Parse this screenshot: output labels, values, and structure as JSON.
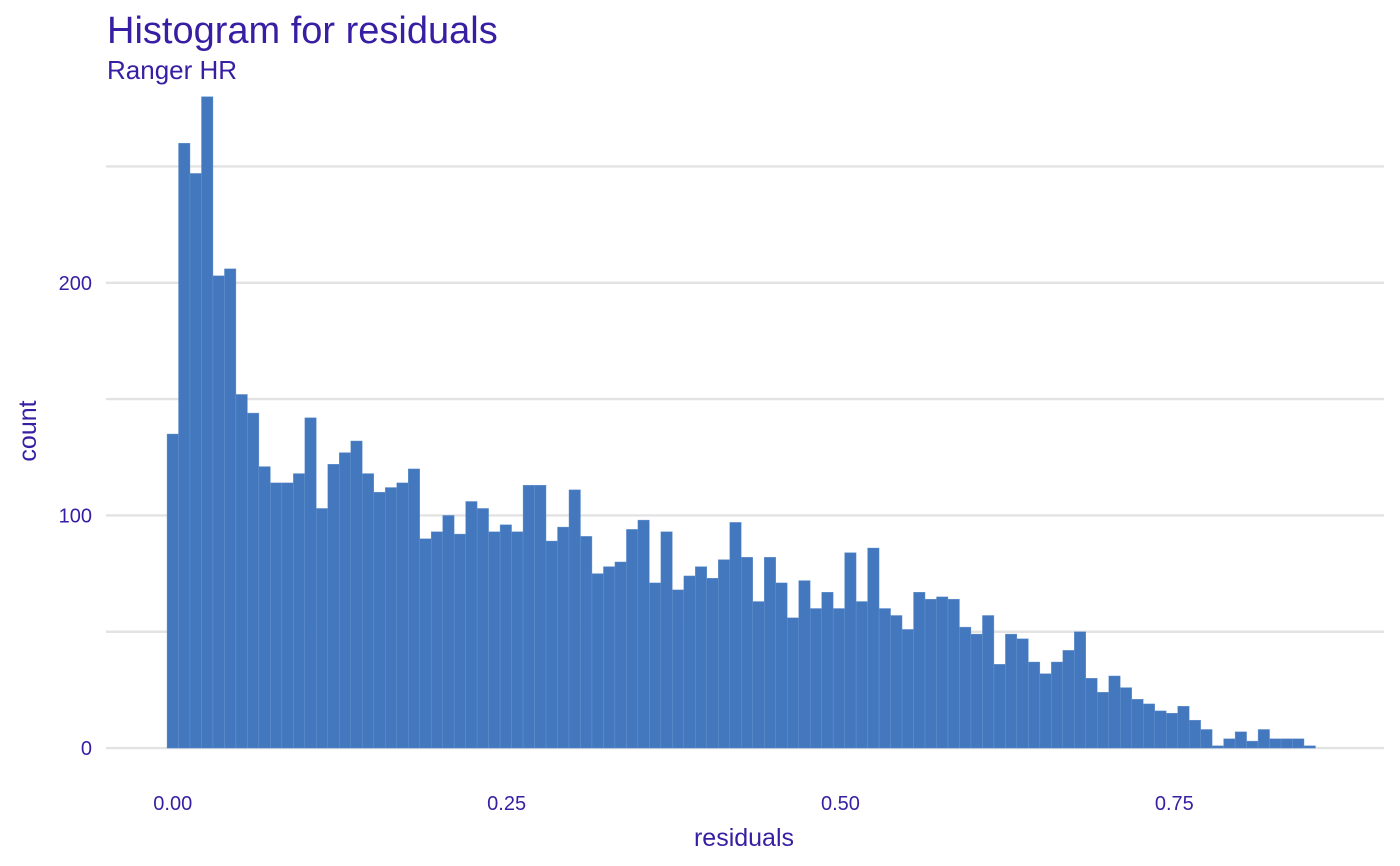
{
  "chart_data": {
    "type": "bar",
    "title": "Histogram for residuals",
    "subtitle": "Ranger HR",
    "xlabel": "residuals",
    "ylabel": "count",
    "xlim": [
      -0.05,
      0.907
    ],
    "ylim": [
      -12,
      282
    ],
    "xticks": [
      0.0,
      0.25,
      0.5,
      0.75
    ],
    "xtick_labels": [
      "0.00",
      "0.25",
      "0.50",
      "0.75"
    ],
    "yticks": [
      0,
      100,
      200
    ],
    "ytick_labels": [
      "0",
      "100",
      "200"
    ],
    "grid": true,
    "legend": "none",
    "bar_color": "#4378bf",
    "grid_color": "#e3e3e3",
    "text_color": "#371ea3",
    "bin_start": -0.0043,
    "bin_width": 0.0086,
    "values": [
      135,
      260,
      247,
      280,
      203,
      206,
      152,
      144,
      121,
      114,
      114,
      118,
      142,
      103,
      122,
      127,
      132,
      118,
      110,
      112,
      114,
      120,
      90,
      93,
      100,
      92,
      106,
      103,
      93,
      96,
      93,
      113,
      113,
      89,
      95,
      111,
      91,
      75,
      78,
      80,
      94,
      98,
      71,
      93,
      68,
      74,
      78,
      73,
      81,
      97,
      82,
      63,
      82,
      71,
      56,
      72,
      60,
      67,
      60,
      84,
      63,
      86,
      60,
      57,
      51,
      67,
      64,
      65,
      64,
      52,
      49,
      57,
      36,
      49,
      47,
      37,
      32,
      37,
      42,
      50,
      30,
      24,
      31,
      26,
      21,
      19,
      16,
      15,
      18,
      12,
      8,
      1,
      4,
      7,
      3,
      8,
      4,
      4,
      4,
      1
    ]
  }
}
